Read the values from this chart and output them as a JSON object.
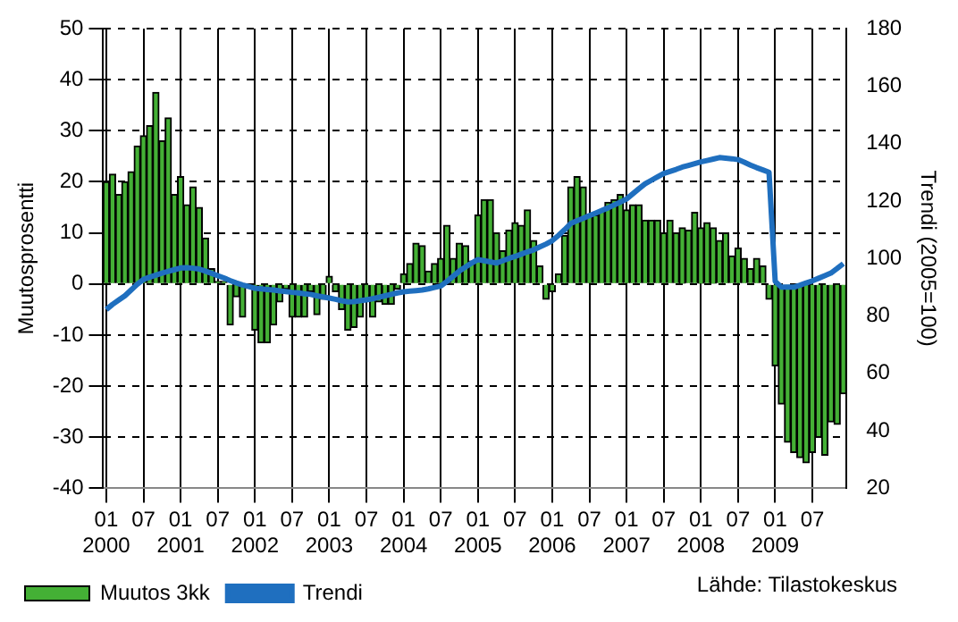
{
  "chart_data": {
    "type": "bar",
    "categories": [
      "01\n2000",
      null,
      null,
      null,
      null,
      null,
      "07",
      null,
      null,
      null,
      null,
      null,
      "01\n2001",
      null,
      null,
      null,
      null,
      null,
      "07",
      null,
      null,
      null,
      null,
      null,
      "01\n2002",
      null,
      null,
      null,
      null,
      null,
      "07",
      null,
      null,
      null,
      null,
      null,
      "01\n2003",
      null,
      null,
      null,
      null,
      null,
      "07",
      null,
      null,
      null,
      null,
      null,
      "01\n2004",
      null,
      null,
      null,
      null,
      null,
      "07",
      null,
      null,
      null,
      null,
      null,
      "01\n2005",
      null,
      null,
      null,
      null,
      null,
      "07",
      null,
      null,
      null,
      null,
      null,
      "01\n2006",
      null,
      null,
      null,
      null,
      null,
      "07",
      null,
      null,
      null,
      null,
      null,
      "01\n2007",
      null,
      null,
      null,
      null,
      null,
      "07",
      null,
      null,
      null,
      null,
      null,
      "01\n2008",
      null,
      null,
      null,
      null,
      null,
      "07",
      null,
      null,
      null,
      null,
      null,
      "01\n2009",
      null,
      null,
      null,
      null,
      null,
      "07",
      null,
      null,
      null,
      null,
      null
    ],
    "series": [
      {
        "name": "Muutos 3kk",
        "color": "#44b035",
        "values": [
          20,
          21.5,
          17.5,
          20,
          22,
          27,
          29,
          31,
          37.5,
          28,
          32.5,
          17.5,
          21,
          15.5,
          19,
          15,
          9,
          3,
          0.5,
          0.5,
          -8,
          -2.5,
          -6.5,
          0,
          -9,
          -11.5,
          -11.5,
          -8,
          -3.5,
          -1,
          -6.5,
          -6.5,
          -6.5,
          -1.5,
          -6,
          -3,
          1.5,
          -1.5,
          -5,
          -9,
          -8.5,
          -6.5,
          -3,
          -6.5,
          -3.5,
          -4,
          -4,
          -1,
          2,
          4,
          8,
          7.5,
          2.5,
          4,
          5,
          11.5,
          5,
          8,
          7.5,
          4.5,
          13.5,
          16.5,
          16.5,
          10,
          6.5,
          10.5,
          12,
          11.5,
          14.5,
          8.5,
          3.5,
          -3,
          -1.5,
          2,
          9.5,
          19,
          21,
          19,
          13.5,
          13.5,
          14.5,
          16,
          16.5,
          17.5,
          14.5,
          15.5,
          15.5,
          12.5,
          12.5,
          12.5,
          10,
          12.5,
          10,
          11,
          10.5,
          14,
          11,
          12,
          11,
          8.5,
          10,
          5.5,
          7,
          5,
          3,
          5,
          3.5,
          -3,
          -16,
          -23.5,
          -31,
          -33,
          -34,
          -35,
          -33,
          -30,
          -33.5,
          -27,
          -27.5,
          -21.5
        ]
      },
      {
        "name": "Trendi",
        "type": "line",
        "axis": "y2",
        "color": "#1f6fbf",
        "values": [
          82.2,
          84,
          85.5,
          87,
          89,
          91,
          92.7,
          93.5,
          94.2,
          94.9,
          95.5,
          96.1,
          96.7,
          96.8,
          96.6,
          96.3,
          95.6,
          94.8,
          94,
          93.2,
          92.3,
          91.5,
          90.8,
          90.2,
          89.6,
          89.4,
          89.2,
          89,
          88.7,
          88.5,
          88.2,
          88,
          87.7,
          87.5,
          87,
          86.6,
          86.2,
          85.8,
          85.3,
          84.9,
          85,
          85.3,
          85.6,
          86,
          86.5,
          87,
          87.5,
          88,
          88.4,
          88.6,
          88.8,
          89,
          89.4,
          89.9,
          90.4,
          92,
          93.8,
          95.6,
          97,
          98.4,
          99.6,
          99.2,
          98.8,
          98.4,
          99.2,
          100,
          100.7,
          101.5,
          102.3,
          103,
          104,
          105,
          106.2,
          108,
          110,
          112.2,
          113.1,
          114,
          114.9,
          115.8,
          116.7,
          117.6,
          118.6,
          119.6,
          120.7,
          122.5,
          124.3,
          126,
          127.2,
          128.4,
          129.6,
          130.3,
          131,
          131.8,
          132.4,
          133,
          133.6,
          134.1,
          134.6,
          135.1,
          134.9,
          134.7,
          134.4,
          133.5,
          132.5,
          131.6,
          130.8,
          130,
          92,
          90,
          90,
          90,
          90.7,
          91.5,
          92.2,
          93.1,
          94,
          94.9,
          96.5,
          98.2
        ]
      }
    ],
    "ylabel": "Muutosprosentti",
    "y2label": "Trendi (2005=100)",
    "ylim": [
      -40,
      50
    ],
    "yticks": [
      -40,
      -30,
      -20,
      -10,
      0,
      10,
      20,
      30,
      40,
      50
    ],
    "y2lim": [
      20,
      180
    ],
    "y2ticks": [
      20,
      40,
      60,
      80,
      100,
      120,
      140,
      160,
      180
    ],
    "grid": true,
    "legend": "bottom left",
    "marker": "none",
    "annotations": [
      "Lähde: Tilastokeskus"
    ]
  }
}
